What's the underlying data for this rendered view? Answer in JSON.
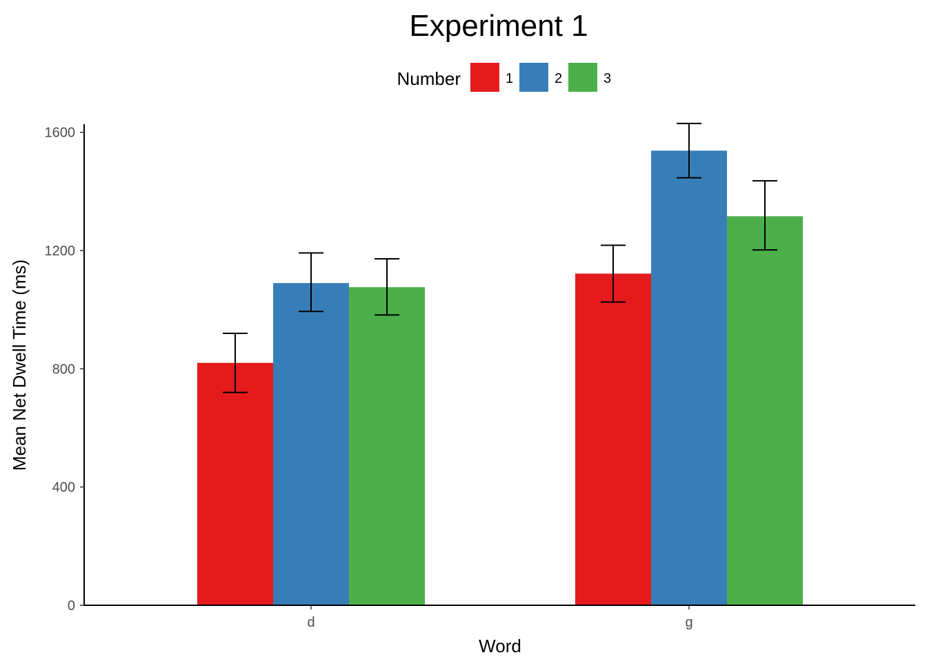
{
  "chart_data": {
    "type": "bar",
    "title": "Experiment 1",
    "xlabel": "Word",
    "ylabel": "Mean Net Dwell Time (ms)",
    "categories": [
      "d",
      "g"
    ],
    "legend": {
      "title": "Number",
      "position": "top"
    },
    "series": [
      {
        "name": "1",
        "color": "#e41a1c",
        "values": [
          820,
          1122
        ],
        "error_low": [
          720,
          1026
        ],
        "error_high": [
          920,
          1218
        ]
      },
      {
        "name": "2",
        "color": "#377eb8",
        "values": [
          1090,
          1538
        ],
        "error_low": [
          994,
          1446
        ],
        "error_high": [
          1192,
          1630
        ]
      },
      {
        "name": "3",
        "color": "#4daf4a",
        "values": [
          1076,
          1316
        ],
        "error_low": [
          982,
          1202
        ],
        "error_high": [
          1172,
          1436
        ]
      }
    ],
    "ylim": [
      0,
      1630
    ],
    "yticks": [
      0,
      400,
      800,
      1200,
      1600
    ],
    "grid": false
  }
}
